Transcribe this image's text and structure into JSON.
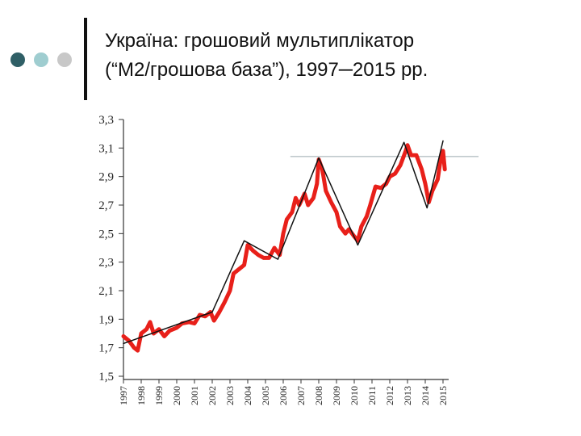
{
  "chart_data": {
    "type": "line",
    "title": [
      "Україна: грошовий мультиплікатор",
      "(“М2/грошова база”), 1997─2015 рр."
    ],
    "xlim": [
      1997,
      2015
    ],
    "xticks": [
      1997,
      1998,
      1999,
      2000,
      2001,
      2002,
      2003,
      2004,
      2005,
      2006,
      2007,
      2008,
      2009,
      2010,
      2011,
      2012,
      2013,
      2014,
      2015
    ],
    "ylim": [
      1.5,
      3.3
    ],
    "yticks": [
      {
        "value": 1.5,
        "label": "1,5"
      },
      {
        "value": 1.7,
        "label": "1,7"
      },
      {
        "value": 1.9,
        "label": "1,9"
      },
      {
        "value": 2.1,
        "label": "2,1"
      },
      {
        "value": 2.3,
        "label": "2,3"
      },
      {
        "value": 2.5,
        "label": "2,5"
      },
      {
        "value": 2.7,
        "label": "2,7"
      },
      {
        "value": 2.9,
        "label": "2,9"
      },
      {
        "value": 3.1,
        "label": "3,1"
      },
      {
        "value": 3.3,
        "label": "3,3"
      }
    ],
    "series": [
      {
        "color": "#e8201a",
        "width": 5,
        "x": [
          1997.0,
          1997.3,
          1997.6,
          1997.8,
          1998.0,
          1998.3,
          1998.5,
          1998.7,
          1999.0,
          1999.3,
          1999.6,
          2000.0,
          2000.3,
          2000.7,
          2001.0,
          2001.3,
          2001.6,
          2001.9,
          2002.1,
          2002.4,
          2002.7,
          2003.0,
          2003.2,
          2003.5,
          2003.8,
          2004.0,
          2004.3,
          2004.6,
          2004.9,
          2005.2,
          2005.5,
          2005.8,
          2006.0,
          2006.2,
          2006.5,
          2006.7,
          2006.9,
          2007.2,
          2007.4,
          2007.7,
          2007.9,
          2008.0,
          2008.2,
          2008.4,
          2008.7,
          2009.0,
          2009.2,
          2009.5,
          2009.7,
          2010.0,
          2010.2,
          2010.4,
          2010.7,
          2010.9,
          2011.2,
          2011.5,
          2011.8,
          2012.0,
          2012.3,
          2012.6,
          2012.9,
          2013.0,
          2013.2,
          2013.5,
          2013.8,
          2014.0,
          2014.2,
          2014.4,
          2014.7,
          2014.9,
          2015.0,
          2015.1
        ],
        "values": [
          1.78,
          1.75,
          1.7,
          1.68,
          1.8,
          1.83,
          1.88,
          1.8,
          1.83,
          1.78,
          1.82,
          1.84,
          1.87,
          1.88,
          1.87,
          1.93,
          1.92,
          1.95,
          1.89,
          1.95,
          2.02,
          2.1,
          2.22,
          2.25,
          2.28,
          2.42,
          2.38,
          2.35,
          2.33,
          2.33,
          2.4,
          2.35,
          2.5,
          2.6,
          2.65,
          2.75,
          2.7,
          2.78,
          2.7,
          2.75,
          2.85,
          3.02,
          2.95,
          2.8,
          2.72,
          2.65,
          2.55,
          2.5,
          2.53,
          2.48,
          2.45,
          2.55,
          2.62,
          2.7,
          2.83,
          2.82,
          2.85,
          2.9,
          2.92,
          2.98,
          3.08,
          3.12,
          3.05,
          3.05,
          2.95,
          2.85,
          2.72,
          2.8,
          2.88,
          3.05,
          3.08,
          2.95
        ]
      },
      {
        "color": "#111111",
        "width": 1.5,
        "x": [
          1997.0,
          2002.0,
          2003.8,
          2005.7,
          2008.0,
          2010.2,
          2012.8,
          2014.1,
          2015.0
        ],
        "values": [
          1.73,
          1.95,
          2.45,
          2.32,
          3.03,
          2.42,
          3.14,
          2.68,
          3.15
        ]
      }
    ],
    "reference_line": {
      "value": 3.04,
      "x_start": 2006.4,
      "x_end": 2017,
      "color": "#9aa9ad"
    }
  }
}
